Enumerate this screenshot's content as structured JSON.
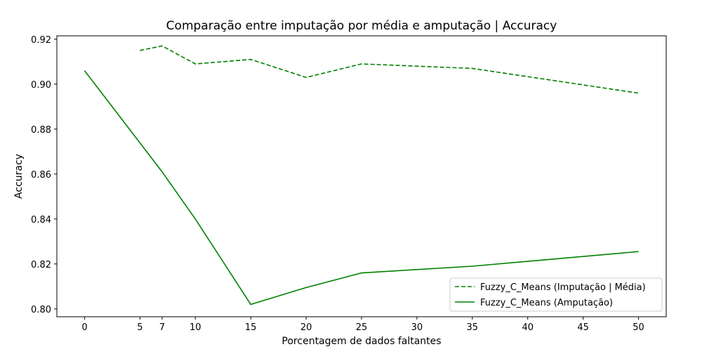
{
  "chart_data": {
    "type": "line",
    "title": "Comparação entre imputação por média e amputação | Accuracy",
    "xlabel": "Porcentagem de dados faltantes",
    "ylabel": "Accuracy",
    "xlim": [
      -2.5,
      52.5
    ],
    "ylim": [
      0.7965,
      0.9215
    ],
    "x_ticks": [
      0,
      5,
      7,
      10,
      15,
      20,
      25,
      30,
      35,
      40,
      45,
      50
    ],
    "y_ticks": [
      0.8,
      0.82,
      0.84,
      0.86,
      0.88,
      0.9,
      0.92
    ],
    "y_tick_labels": [
      "0.80",
      "0.82",
      "0.84",
      "0.86",
      "0.88",
      "0.90",
      "0.92"
    ],
    "grid": false,
    "legend_position": "lower-right",
    "series": [
      {
        "name": "Fuzzy_C_Means (Imputação | Média)",
        "color": "#008000",
        "style": "dashed",
        "x": [
          5,
          7,
          10,
          15,
          20,
          25,
          35,
          50
        ],
        "y": [
          0.915,
          0.917,
          0.909,
          0.911,
          0.903,
          0.909,
          0.907,
          0.896
        ]
      },
      {
        "name": "Fuzzy_C_Means (Amputação)",
        "color": "#008000",
        "style": "solid",
        "x": [
          0,
          7,
          10,
          15,
          20,
          25,
          35,
          50
        ],
        "y": [
          0.906,
          0.861,
          0.84,
          0.802,
          0.8095,
          0.816,
          0.819,
          0.8255
        ]
      }
    ]
  }
}
